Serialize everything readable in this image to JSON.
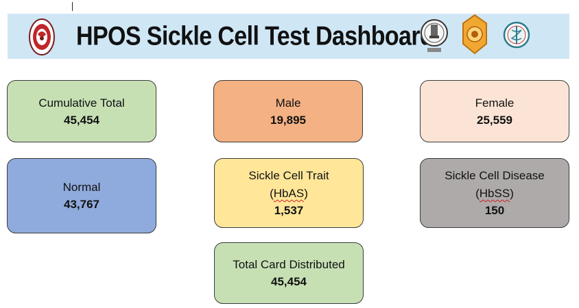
{
  "header": {
    "title": "HPOS Sickle Cell Test Dashboard",
    "background": "#cfe6f5"
  },
  "cards": {
    "cumulative_total": {
      "label": "Cumulative Total",
      "value": "45,454",
      "color": "#c6e0b4"
    },
    "male": {
      "label": "Male",
      "value": "19,895",
      "color": "#f4b183"
    },
    "female": {
      "label": "Female",
      "value": "25,559",
      "color": "#fbe4d5"
    },
    "normal": {
      "label": "Normal",
      "value": "43,767",
      "color": "#8faadc"
    },
    "sickle_cell_trait": {
      "label": "Sickle Cell Trait",
      "open": "(",
      "code": "HbAS",
      "close": ")",
      "value": "1,537",
      "color": "#ffe699"
    },
    "sickle_cell_disease": {
      "label": "Sickle Cell Disease",
      "open": "(",
      "code": "HbSS",
      "close": ")",
      "value": "150",
      "color": "#aeaaaa"
    },
    "total_card_distributed": {
      "label": "Total Card Distributed",
      "value": "45,454",
      "color": "#c6e0b4"
    }
  },
  "icons": {
    "left_logo": "red-circular-emblem-icon",
    "right_logos": [
      "state-emblem-icon",
      "golden-seal-icon",
      "medical-caduceus-emblem-icon"
    ]
  }
}
